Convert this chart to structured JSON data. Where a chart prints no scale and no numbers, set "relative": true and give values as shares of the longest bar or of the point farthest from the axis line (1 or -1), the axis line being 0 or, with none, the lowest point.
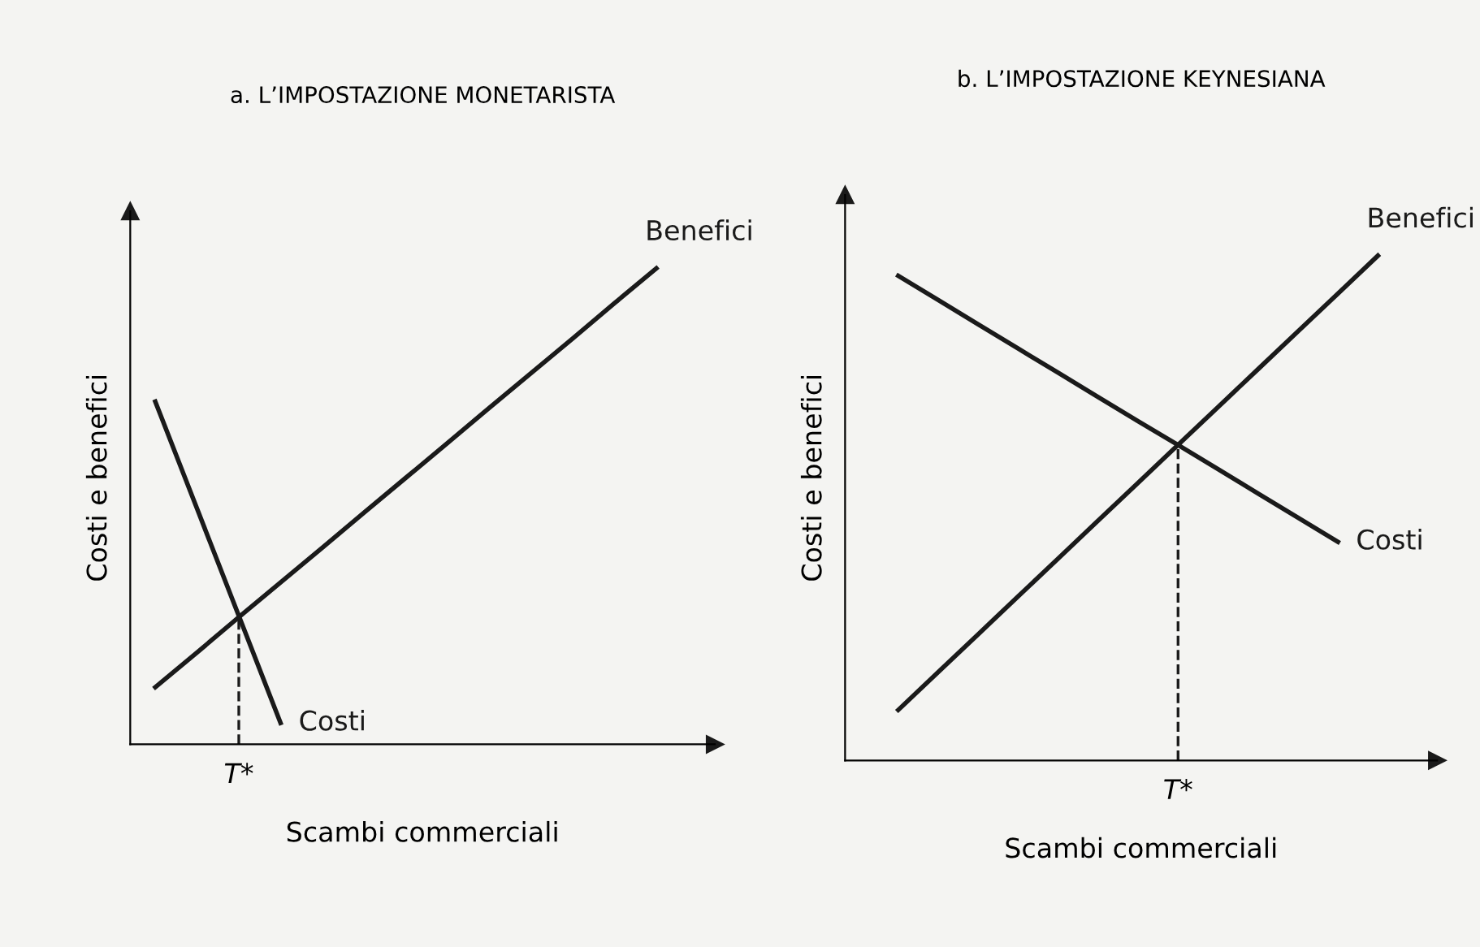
{
  "chart_data": [
    {
      "type": "line",
      "title": "a. L’IMPOSTAZIONE MONETARISTA",
      "xlabel": "Scambi commerciali",
      "ylabel": "Costi e benefici",
      "relative": true,
      "legend": false,
      "categories": [
        null,
        null,
        null,
        null,
        null,
        null,
        null,
        null,
        null,
        null,
        null,
        null,
        null
      ],
      "series": [
        {
          "name": "Benefici",
          "color": "#1a1a1a",
          "values": [
            0.12,
            0.193,
            0.267,
            0.34,
            0.413,
            0.487,
            0.56,
            0.633,
            0.707,
            0.78,
            0.853,
            0.927,
            1.0
          ]
        },
        {
          "name": "Costi",
          "color": "#1a1a1a",
          "values": [
            0.72,
            0.495,
            0.27,
            0.045,
            null,
            null,
            null,
            null,
            null,
            null,
            null,
            null,
            null
          ]
        }
      ],
      "annotations": [
        "T*"
      ]
    },
    {
      "type": "line",
      "title": "b. L’IMPOSTAZIONE KEYNESIANA",
      "xlabel": "Scambi commerciali",
      "ylabel": "Costi e benefici",
      "relative": true,
      "legend": false,
      "categories": [
        null,
        null,
        null,
        null,
        null,
        null,
        null,
        null,
        null,
        null,
        null,
        null,
        null
      ],
      "series": [
        {
          "name": "Benefici",
          "color": "#1a1a1a",
          "values": [
            0.1,
            0.175,
            0.25,
            0.325,
            0.4,
            0.475,
            0.55,
            0.625,
            0.7,
            0.775,
            0.85,
            0.925,
            1.0
          ]
        },
        {
          "name": "Costi",
          "color": "#1a1a1a",
          "values": [
            0.96,
            0.912,
            0.864,
            0.816,
            0.768,
            0.72,
            0.672,
            0.625,
            0.577,
            0.529,
            0.481,
            0.433,
            null
          ]
        }
      ],
      "annotations": [
        "T*"
      ]
    }
  ]
}
